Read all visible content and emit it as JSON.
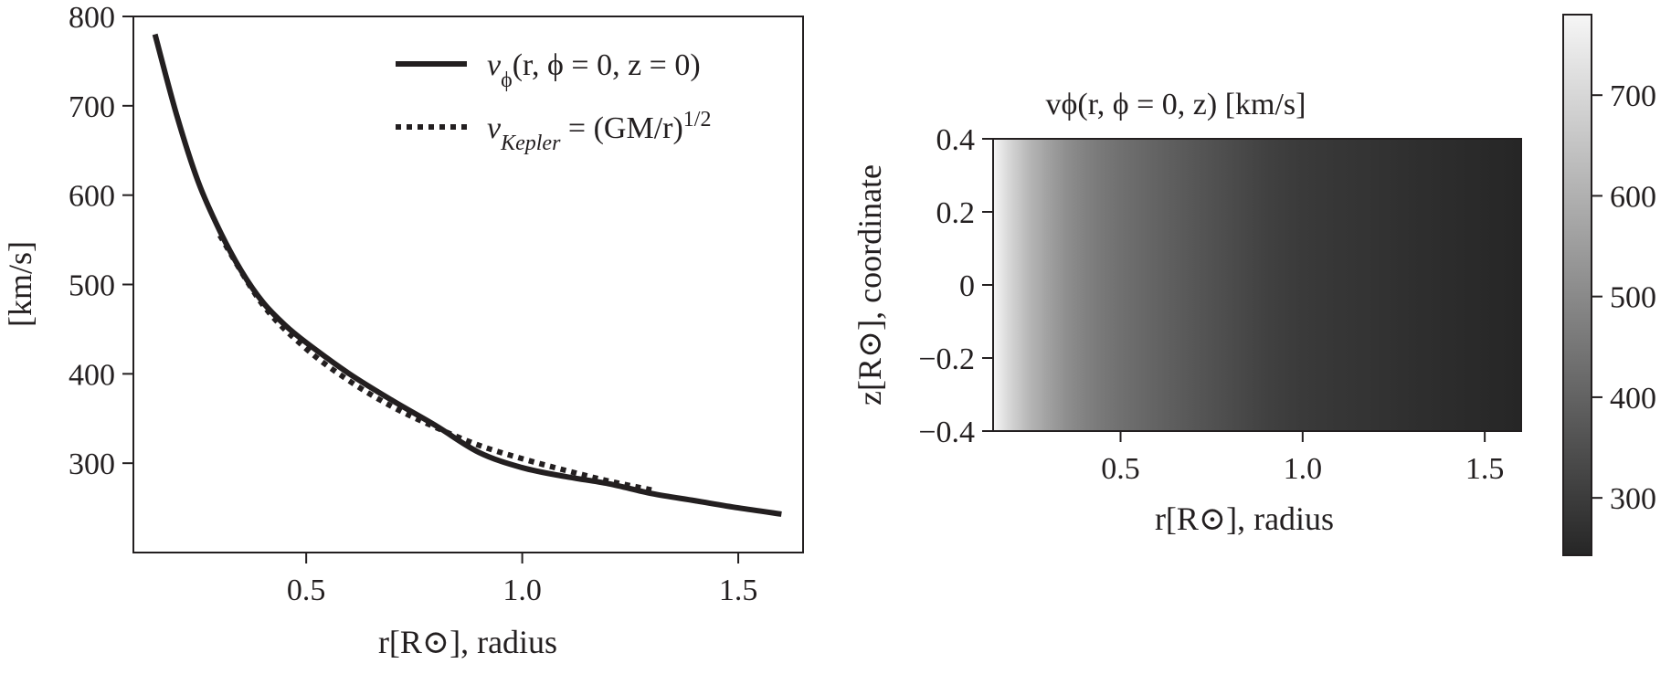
{
  "chart_data": [
    {
      "type": "line",
      "title": "",
      "xlabel": "r[R⊙], radius",
      "ylabel": "[km/s]",
      "xlim": [
        0.1,
        1.65
      ],
      "ylim": [
        200,
        800
      ],
      "xticks": [
        "0.5",
        "1.0",
        "1.5"
      ],
      "yticks": [
        "300",
        "400",
        "500",
        "600",
        "700",
        "800"
      ],
      "series": [
        {
          "name": "vϕ(r, ϕ = 0, z = 0)",
          "style": "solid",
          "x": [
            0.15,
            0.2,
            0.25,
            0.3,
            0.35,
            0.4,
            0.45,
            0.5,
            0.6,
            0.7,
            0.8,
            0.9,
            1.0,
            1.1,
            1.2,
            1.3,
            1.4,
            1.5,
            1.6
          ],
          "y": [
            780,
            690,
            615,
            560,
            515,
            480,
            455,
            435,
            400,
            370,
            342,
            312,
            295,
            285,
            277,
            266,
            258,
            250,
            243
          ]
        },
        {
          "name": "v_Kepler = (GM/r)^1/2",
          "style": "dotted",
          "x": [
            0.3,
            0.4,
            0.5,
            0.6,
            0.7,
            0.8,
            0.9,
            1.0,
            1.1,
            1.2,
            1.3
          ],
          "y": [
            555,
            477,
            428,
            392,
            363,
            340,
            320,
            305,
            292,
            280,
            270
          ]
        }
      ],
      "legend": {
        "position": "top-right",
        "entries": [
          {
            "prefix": "v",
            "sub": "ϕ",
            "rest": "(r, ϕ = 0, z = 0)"
          },
          {
            "prefix": "v",
            "sub": "Kepler",
            "rest": " = (GM/r)",
            "sup": "1/2"
          }
        ]
      }
    },
    {
      "type": "heatmap",
      "title": "vϕ(r, ϕ = 0, z) [km/s]",
      "xlabel": "r[R⊙], radius",
      "ylabel": "z[R⊙], coordinate",
      "xlim": [
        0.15,
        1.6
      ],
      "ylim": [
        -0.4,
        0.4
      ],
      "xticks": [
        "0.5",
        "1.0",
        "1.5"
      ],
      "yticks": [
        "0.4",
        "0.2",
        "0",
        "−0.2",
        "−0.4"
      ],
      "note": "value depends on r only; uniform along z",
      "profile_r": [
        0.15,
        0.2,
        0.25,
        0.3,
        0.35,
        0.4,
        0.45,
        0.5,
        0.6,
        0.7,
        0.8,
        0.9,
        1.0,
        1.1,
        1.2,
        1.3,
        1.4,
        1.5,
        1.6
      ],
      "profile_v": [
        780,
        690,
        615,
        560,
        515,
        480,
        455,
        435,
        400,
        370,
        342,
        312,
        295,
        285,
        277,
        266,
        258,
        250,
        243
      ],
      "colorbar": {
        "vmin": 243,
        "vmax": 780,
        "ticks": [
          "300",
          "400",
          "500",
          "600",
          "700"
        ],
        "colormap": "gray"
      }
    }
  ]
}
